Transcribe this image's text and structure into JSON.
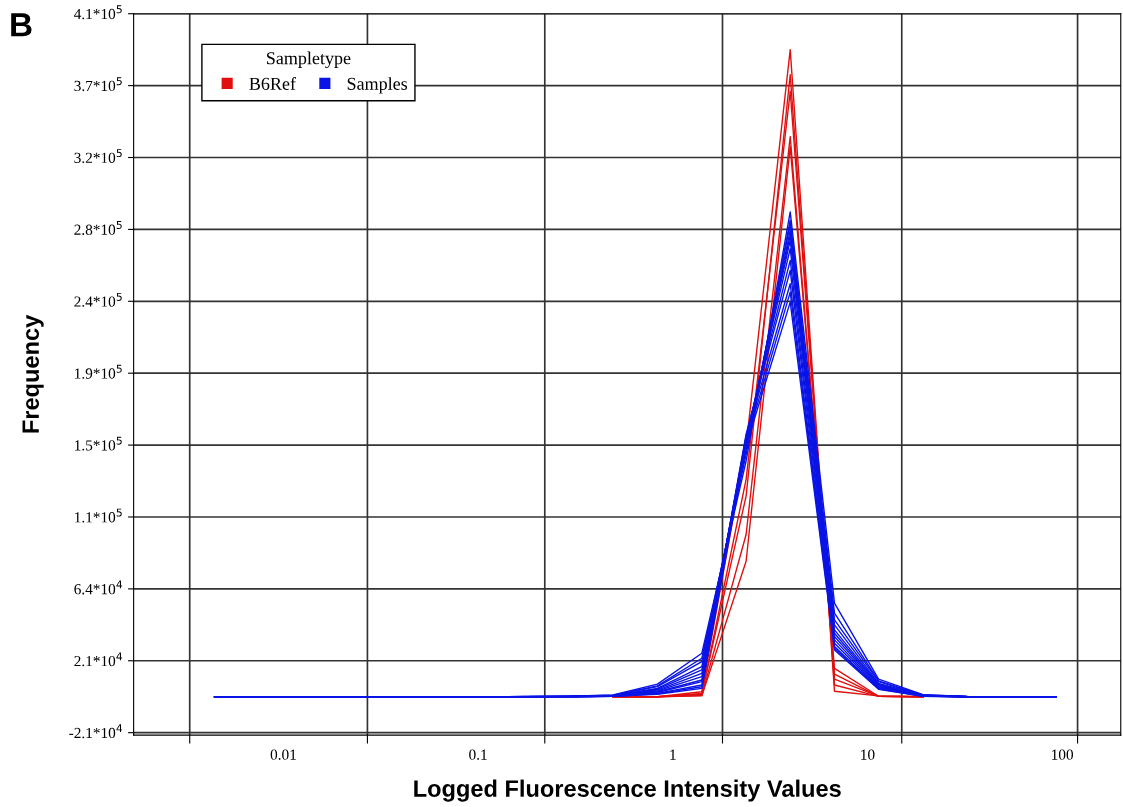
{
  "chart_data": {
    "type": "line",
    "xlabel": "Logged Fluorescence Intensity Values",
    "ylabel": "Frequency",
    "legend_title": "Sampletype",
    "annotations": [
      "B"
    ],
    "log": "x",
    "grid": true,
    "legend": "top left",
    "marker": "none",
    "line_style": "solid",
    "xlim": [
      0.0017,
      200
    ],
    "xticks": [
      {
        "value": 0.0033,
        "label": null
      },
      {
        "value": 0.01,
        "label": "0.01"
      },
      {
        "value": 0.027,
        "label": null
      },
      {
        "value": 0.1,
        "label": "0.1"
      },
      {
        "value": 0.22,
        "label": null
      },
      {
        "value": 1,
        "label": "1"
      },
      {
        "value": 1.8,
        "label": null
      },
      {
        "value": 10,
        "label": "10"
      },
      {
        "value": 15,
        "label": null
      },
      {
        "value": 100,
        "label": "100"
      },
      {
        "value": 120,
        "label": null
      }
    ],
    "ylim": [
      -23000,
      408500
    ],
    "yticks": [
      {
        "value": -21500,
        "label": "-2.1*10$^{4}$"
      },
      {
        "value": 21500,
        "label": "2.1*10$^{4}$"
      },
      {
        "value": 64500,
        "label": "6.4*10$^{4}$"
      },
      {
        "value": 107500,
        "label": "1.1*10$^{5}$"
      },
      {
        "value": 150500,
        "label": "1.5*10$^{5}$"
      },
      {
        "value": 193500,
        "label": "1.9*10$^{5}$"
      },
      {
        "value": 236500,
        "label": "2.4*10$^{5}$"
      },
      {
        "value": 279500,
        "label": "2.8*10$^{5}$"
      },
      {
        "value": 322500,
        "label": "3.2*10$^{5}$"
      },
      {
        "value": 365500,
        "label": "3.7*10$^{5}$"
      },
      {
        "value": 408500,
        "label": "4.1*10$^{5}$"
      }
    ],
    "x": [
      0.00443,
      0.00747,
      0.0126,
      0.0213,
      0.036,
      0.0607,
      0.1026,
      0.173,
      0.292,
      0.493,
      0.834,
      1.41,
      2.38,
      4.01,
      6.77,
      11.4,
      19.3,
      32.6,
      55.1,
      92.9
    ],
    "series": [
      {
        "name": "B6Ref",
        "color": "#e01010",
        "values": [
          null,
          null,
          null,
          null,
          null,
          null,
          null,
          null,
          null,
          0,
          0,
          3000,
          150000,
          387000,
          3300,
          500,
          0,
          null,
          null,
          null
        ]
      },
      {
        "color": "#e01010",
        "values": [
          null,
          null,
          null,
          null,
          null,
          null,
          null,
          null,
          null,
          0,
          0,
          1500,
          130000,
          362000,
          10500,
          300,
          0,
          null,
          null,
          null
        ]
      },
      {
        "color": "#e01010",
        "values": [
          null,
          null,
          null,
          null,
          null,
          null,
          null,
          null,
          null,
          0,
          0,
          800,
          97000,
          335000,
          13500,
          200,
          0,
          null,
          null,
          null
        ]
      },
      {
        "color": "#e01010",
        "values": [
          null,
          null,
          null,
          null,
          null,
          null,
          null,
          null,
          null,
          0,
          0,
          500,
          81000,
          329000,
          17000,
          300,
          0,
          null,
          null,
          null
        ]
      },
      {
        "color": "#e01010",
        "values": [
          null,
          null,
          null,
          null,
          null,
          null,
          null,
          null,
          null,
          0,
          0,
          2000,
          120000,
          372000,
          7000,
          200,
          0,
          null,
          null,
          null
        ]
      },
      {
        "name": "Samples",
        "color": "#0a14e6",
        "values": [
          0,
          0,
          0,
          0,
          0,
          0,
          0,
          100,
          300,
          1000,
          7500,
          26000,
          141000,
          290000,
          56000,
          10500,
          1200,
          100,
          0,
          0
        ]
      },
      {
        "color": "#0a14e6",
        "values": [
          0,
          0,
          0,
          0,
          0,
          0,
          0,
          100,
          200,
          900,
          6500,
          23000,
          145000,
          285000,
          50000,
          9500,
          1000,
          100,
          0,
          0
        ]
      },
      {
        "color": "#0a14e6",
        "values": [
          0,
          0,
          0,
          0,
          0,
          0,
          0,
          0,
          200,
          800,
          6000,
          21000,
          148000,
          283000,
          46000,
          9000,
          900,
          0,
          0,
          0
        ]
      },
      {
        "color": "#0a14e6",
        "values": [
          0,
          0,
          0,
          0,
          0,
          0,
          0,
          0,
          200,
          700,
          5000,
          18000,
          150000,
          279000,
          43000,
          8000,
          800,
          0,
          0,
          0
        ]
      },
      {
        "color": "#0a14e6",
        "values": [
          0,
          0,
          0,
          0,
          0,
          0,
          0,
          0,
          100,
          600,
          4500,
          16000,
          152000,
          276000,
          40000,
          7500,
          700,
          0,
          0,
          0
        ]
      },
      {
        "color": "#0a14e6",
        "values": [
          0,
          0,
          0,
          0,
          0,
          0,
          0,
          0,
          100,
          500,
          4000,
          14000,
          153000,
          273000,
          38000,
          7000,
          600,
          0,
          0,
          0
        ]
      },
      {
        "color": "#0a14e6",
        "values": [
          0,
          0,
          0,
          0,
          0,
          0,
          0,
          0,
          100,
          500,
          3500,
          12000,
          155000,
          268000,
          36000,
          6500,
          500,
          0,
          0,
          0
        ]
      },
      {
        "color": "#0a14e6",
        "values": [
          0,
          0,
          0,
          0,
          0,
          0,
          0,
          0,
          0,
          400,
          3000,
          10000,
          156000,
          261000,
          34000,
          6000,
          500,
          0,
          0,
          0
        ]
      },
      {
        "color": "#0a14e6",
        "values": [
          0,
          0,
          0,
          0,
          0,
          0,
          0,
          0,
          0,
          400,
          2500,
          9000,
          157000,
          255000,
          32000,
          5500,
          400,
          0,
          0,
          0
        ]
      },
      {
        "color": "#0a14e6",
        "values": [
          0,
          0,
          0,
          0,
          0,
          0,
          0,
          0,
          0,
          300,
          2000,
          7000,
          155000,
          247000,
          30000,
          5000,
          400,
          0,
          0,
          0
        ]
      },
      {
        "color": "#0a14e6",
        "values": [
          0,
          0,
          0,
          0,
          0,
          0,
          0,
          0,
          0,
          300,
          1800,
          6000,
          152000,
          242000,
          29000,
          4800,
          300,
          0,
          0,
          0
        ]
      },
      {
        "color": "#0a14e6",
        "values": [
          0,
          0,
          0,
          0,
          0,
          0,
          0,
          0,
          0,
          300,
          1500,
          5000,
          150000,
          236000,
          28000,
          4500,
          300,
          0,
          0,
          0
        ]
      }
    ]
  }
}
